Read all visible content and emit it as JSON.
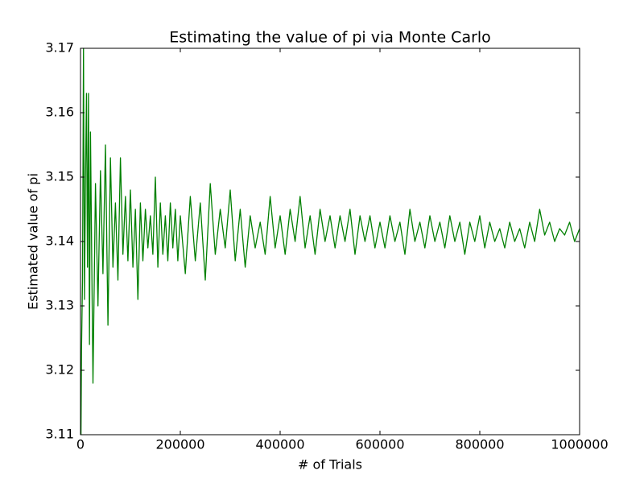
{
  "chart_data": {
    "type": "line",
    "title": "Estimating the value of pi via Monte Carlo",
    "xlabel": "# of Trials",
    "ylabel": "Estimated value of pi",
    "color": "#008000",
    "grid": false,
    "xlim": [
      0,
      1000000
    ],
    "ylim": [
      3.11,
      3.17
    ],
    "xticks": [
      0,
      200000,
      400000,
      600000,
      800000,
      1000000
    ],
    "yticks": [
      3.11,
      3.12,
      3.13,
      3.14,
      3.15,
      3.16,
      3.17
    ],
    "x": [
      1000,
      2000,
      4000,
      6000,
      8000,
      10000,
      12000,
      14000,
      16000,
      18000,
      20000,
      25000,
      30000,
      35000,
      40000,
      45000,
      50000,
      55000,
      60000,
      65000,
      70000,
      75000,
      80000,
      85000,
      90000,
      95000,
      100000,
      105000,
      110000,
      115000,
      120000,
      125000,
      130000,
      135000,
      140000,
      145000,
      150000,
      155000,
      160000,
      165000,
      170000,
      175000,
      180000,
      185000,
      190000,
      195000,
      200000,
      210000,
      220000,
      230000,
      240000,
      250000,
      260000,
      270000,
      280000,
      290000,
      300000,
      310000,
      320000,
      330000,
      340000,
      350000,
      360000,
      370000,
      380000,
      390000,
      400000,
      410000,
      420000,
      430000,
      440000,
      450000,
      460000,
      470000,
      480000,
      490000,
      500000,
      510000,
      520000,
      530000,
      540000,
      550000,
      560000,
      570000,
      580000,
      590000,
      600000,
      610000,
      620000,
      630000,
      640000,
      650000,
      660000,
      670000,
      680000,
      690000,
      700000,
      710000,
      720000,
      730000,
      740000,
      750000,
      760000,
      770000,
      780000,
      790000,
      800000,
      810000,
      820000,
      830000,
      840000,
      850000,
      860000,
      870000,
      880000,
      890000,
      900000,
      910000,
      920000,
      930000,
      940000,
      950000,
      960000,
      970000,
      980000,
      990000,
      1000000
    ],
    "values": [
      3.11,
      3.123,
      3.134,
      3.17,
      3.131,
      3.15,
      3.163,
      3.136,
      3.163,
      3.124,
      3.157,
      3.118,
      3.149,
      3.13,
      3.151,
      3.135,
      3.155,
      3.127,
      3.153,
      3.136,
      3.146,
      3.134,
      3.153,
      3.138,
      3.147,
      3.137,
      3.148,
      3.136,
      3.145,
      3.131,
      3.146,
      3.137,
      3.145,
      3.139,
      3.144,
      3.138,
      3.15,
      3.136,
      3.146,
      3.138,
      3.144,
      3.137,
      3.146,
      3.139,
      3.145,
      3.137,
      3.144,
      3.135,
      3.147,
      3.137,
      3.146,
      3.134,
      3.149,
      3.138,
      3.145,
      3.139,
      3.148,
      3.137,
      3.145,
      3.136,
      3.144,
      3.139,
      3.143,
      3.138,
      3.147,
      3.139,
      3.144,
      3.138,
      3.145,
      3.14,
      3.147,
      3.139,
      3.144,
      3.138,
      3.145,
      3.14,
      3.144,
      3.139,
      3.144,
      3.14,
      3.145,
      3.138,
      3.144,
      3.14,
      3.144,
      3.139,
      3.143,
      3.139,
      3.144,
      3.14,
      3.143,
      3.138,
      3.145,
      3.14,
      3.143,
      3.139,
      3.144,
      3.14,
      3.143,
      3.139,
      3.144,
      3.14,
      3.143,
      3.138,
      3.143,
      3.14,
      3.144,
      3.139,
      3.143,
      3.14,
      3.142,
      3.139,
      3.143,
      3.14,
      3.142,
      3.139,
      3.143,
      3.14,
      3.145,
      3.141,
      3.143,
      3.14,
      3.142,
      3.141,
      3.143,
      3.14,
      3.142
    ]
  }
}
